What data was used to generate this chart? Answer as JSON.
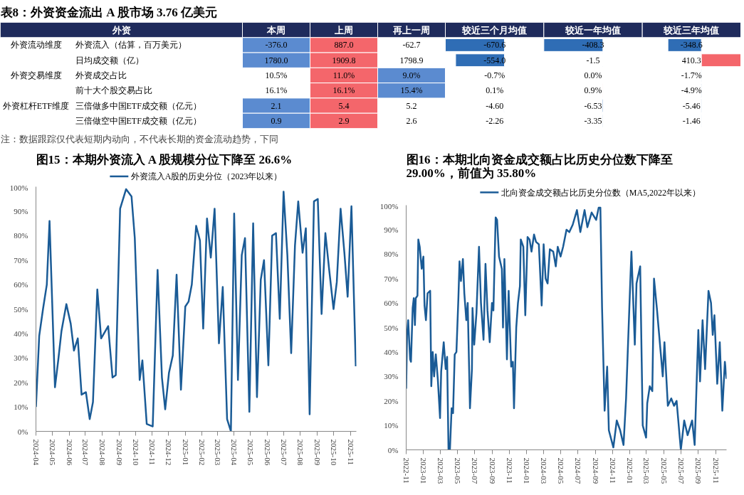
{
  "chart_data": [
    {
      "type": "heatmap",
      "title": "表8：外资资金流出 A 股市场 3.76 亿美元",
      "ylabel": "外资",
      "categories": [
        "本周",
        "上周",
        "再上一周",
        "较近三个月均值",
        "较近一年均值",
        "较近三年均值"
      ],
      "y_categories": [
        "外资流入（估算，百万美元）",
        "日均成交额（亿）",
        "外资成交占比",
        "前十大个股交易占比",
        "三倍做多中国ETF成交额（亿元）",
        "三倍做空中国ETF成交额（亿元）"
      ],
      "y2_categories": [
        "外资流动维度",
        null,
        "外资交易维度",
        null,
        "外资杠杆ETF维度",
        null
      ],
      "cells": [
        [
          -376.0,
          887.0,
          -62.7,
          -670.6,
          -408.3,
          -348.6
        ],
        [
          1780.0,
          1909.8,
          1798.9,
          -554.0,
          -1.5,
          410.3
        ],
        [
          10.5,
          11.0,
          9.0,
          -0.7,
          0.0,
          -1.7
        ],
        [
          16.1,
          16.1,
          15.4,
          0.1,
          0.9,
          -4.9
        ],
        [
          2.1,
          5.4,
          5.2,
          -4.6,
          -6.53,
          -5.46
        ],
        [
          0.9,
          2.9,
          2.6,
          -2.26,
          -3.35,
          -1.46
        ]
      ],
      "cell_labels": [
        [
          "-376.0",
          "887.0",
          "-62.7",
          "-670.6",
          "-408.3",
          "-348.6"
        ],
        [
          "1780.0",
          "1909.8",
          "1798.9",
          "-554.0",
          "-1.5",
          "410.3"
        ],
        [
          "10.5%",
          "11.0%",
          "9.0%",
          "-0.7%",
          "0.0%",
          "-1.7%"
        ],
        [
          "16.1%",
          "16.1%",
          "15.4%",
          "0.1%",
          "0.9%",
          "-4.9%"
        ],
        [
          "2.1",
          "5.4",
          "5.2",
          "-4.60",
          "-6.53",
          "-5.46"
        ],
        [
          "0.9",
          "2.9",
          "2.6",
          "-2.26",
          "-3.35",
          "-1.46"
        ]
      ],
      "annotations": [
        "注：数据跟踪仅代表短期内动向，不代表长期的资金流动趋势，下同"
      ]
    },
    {
      "type": "line",
      "title": "图15：本期外资流入 A 股规模分位下降至 26.6%",
      "legend": "top",
      "marker": "none",
      "xlim": [
        "2024-04-01",
        "2025-11-12"
      ],
      "xticks": [
        "2024-04",
        "2024-05",
        "2024-06",
        "2024-07",
        "2024-08",
        "2024-09",
        "2024-10",
        "2024-11",
        "2024-12",
        "2025-01",
        "2025-02",
        "2025-03",
        "2025-04",
        "2025-05",
        "2025-06",
        "2025-07",
        "2025-08",
        "2025-09",
        "2025-10",
        "2025-11"
      ],
      "ylim": [
        0,
        100
      ],
      "yticks": [
        {
          "value": 0,
          "label": "0%"
        },
        {
          "value": 10,
          "label": "10%"
        },
        {
          "value": 20,
          "label": "20%"
        },
        {
          "value": 30,
          "label": "30%"
        },
        {
          "value": 40,
          "label": "40%"
        },
        {
          "value": 50,
          "label": "50%"
        },
        {
          "value": 60,
          "label": "60%"
        },
        {
          "value": 70,
          "label": "70%"
        },
        {
          "value": 80,
          "label": "80%"
        },
        {
          "value": 90,
          "label": "90%"
        },
        {
          "value": 100,
          "label": "100%"
        }
      ],
      "series": [
        {
          "name": "外资流入A股的历史分位（2023年以来）",
          "color": "#1a5b96",
          "x": [
            "2024-04-01",
            "2024-04-07",
            "2024-04-14",
            "2024-04-21",
            "2024-04-26",
            "2024-05-06",
            "2024-05-12",
            "2024-05-18",
            "2024-05-27",
            "2024-06-04",
            "2024-06-10",
            "2024-06-17",
            "2024-06-24",
            "2024-07-02",
            "2024-07-09",
            "2024-07-15",
            "2024-07-23",
            "2024-07-30",
            "2024-08-12",
            "2024-08-20",
            "2024-08-26",
            "2024-09-03",
            "2024-09-14",
            "2024-09-24",
            "2024-09-30",
            "2024-10-09",
            "2024-10-14",
            "2024-10-22",
            "2024-11-02",
            "2024-11-11",
            "2024-11-19",
            "2024-11-25",
            "2024-12-02",
            "2024-12-09",
            "2024-12-16",
            "2024-12-24",
            "2025-01-01",
            "2025-01-07",
            "2025-01-13",
            "2025-01-21",
            "2025-01-28",
            "2025-02-03",
            "2025-02-10",
            "2025-02-17",
            "2025-02-24",
            "2025-03-04",
            "2025-03-11",
            "2025-03-19",
            "2025-03-26",
            "2025-04-01",
            "2025-04-08",
            "2025-04-15",
            "2025-04-21",
            "2025-04-29",
            "2025-05-06",
            "2025-05-13",
            "2025-05-20",
            "2025-05-26",
            "2025-06-03",
            "2025-06-10",
            "2025-06-17",
            "2025-06-24",
            "2025-07-01",
            "2025-07-08",
            "2025-07-15",
            "2025-07-22",
            "2025-07-28",
            "2025-08-05",
            "2025-08-11",
            "2025-08-18",
            "2025-08-26",
            "2025-09-02",
            "2025-09-09",
            "2025-09-16",
            "2025-09-23",
            "2025-10-01",
            "2025-10-07",
            "2025-10-14",
            "2025-10-21",
            "2025-10-27",
            "2025-11-03",
            "2025-11-11"
          ],
          "values": [
            10,
            39,
            50,
            60,
            86,
            18,
            29,
            41,
            52,
            44,
            33,
            38,
            15,
            16,
            5,
            12,
            58,
            38,
            43,
            22,
            23,
            91,
            99,
            96,
            79,
            21,
            29,
            3,
            2,
            66,
            22,
            9,
            24,
            31,
            64,
            17,
            51,
            53,
            60,
            84,
            78,
            42,
            87,
            71,
            91,
            36,
            59,
            5,
            0,
            89,
            21,
            72,
            79,
            8,
            85,
            14,
            62,
            70,
            27,
            80,
            81,
            46,
            98,
            72,
            32,
            76,
            94,
            73,
            83,
            7,
            94,
            95,
            48,
            81,
            66,
            50,
            61,
            91,
            73,
            55,
            92,
            26.6
          ]
        }
      ]
    },
    {
      "type": "line",
      "title": "图16：本期北向资金成交额占比历史分位数下降至29.00%，前值为 35.80%",
      "legend": "top",
      "marker": "none",
      "xlim": [
        "2022-11-01",
        "2025-12-10"
      ],
      "xticks": [
        "2022-11",
        "2023-01",
        "2023-03",
        "2023-05",
        "2023-07",
        "2023-09",
        "2023-11",
        "2024-01",
        "2024-03",
        "2024-05",
        "2024-07",
        "2024-09",
        "2024-11",
        "2025-01",
        "2025-03",
        "2025-05",
        "2025-07",
        "2025-09",
        "2025-11"
      ],
      "ylim": [
        0,
        100
      ],
      "yticks": [
        {
          "value": 0,
          "label": "0%"
        },
        {
          "value": 10,
          "label": "10%"
        },
        {
          "value": 20,
          "label": "20%"
        },
        {
          "value": 30,
          "label": "30%"
        },
        {
          "value": 40,
          "label": "40%"
        },
        {
          "value": 50,
          "label": "50%"
        },
        {
          "value": 60,
          "label": "60%"
        },
        {
          "value": 70,
          "label": "70%"
        },
        {
          "value": 80,
          "label": "80%"
        },
        {
          "value": 90,
          "label": "90%"
        },
        {
          "value": 100,
          "label": "100%"
        }
      ],
      "series": [
        {
          "name": "北向资金成交额占比历史分位数（MA5,2022年以来）",
          "color": "#1a5b96",
          "x": [
            "2022-11-01",
            "2022-11-04",
            "2022-11-08",
            "2022-11-15",
            "2022-11-18",
            "2022-11-24",
            "2022-11-28",
            "2022-12-02",
            "2022-12-05",
            "2022-12-11",
            "2022-12-14",
            "2022-12-19",
            "2022-12-26",
            "2023-01-01",
            "2023-01-05",
            "2023-01-10",
            "2023-01-16",
            "2023-01-25",
            "2023-01-29",
            "2023-02-03",
            "2023-02-08",
            "2023-02-14",
            "2023-02-21",
            "2023-03-01",
            "2023-03-05",
            "2023-03-14",
            "2023-03-21",
            "2023-03-26",
            "2023-03-31",
            "2023-04-05",
            "2023-04-11",
            "2023-04-16",
            "2023-04-22",
            "2023-04-28",
            "2023-05-05",
            "2023-05-09",
            "2023-05-14",
            "2023-05-21",
            "2023-05-26",
            "2023-06-02",
            "2023-06-07",
            "2023-06-15",
            "2023-06-22",
            "2023-06-24",
            "2023-06-30",
            "2023-07-08",
            "2023-07-17",
            "2023-07-24",
            "2023-08-02",
            "2023-08-09",
            "2023-08-16",
            "2023-08-24",
            "2023-09-01",
            "2023-09-06",
            "2023-09-14",
            "2023-09-19",
            "2023-09-26",
            "2023-10-06",
            "2023-10-10",
            "2023-10-15",
            "2023-10-24",
            "2023-10-30",
            "2023-11-08",
            "2023-11-14",
            "2023-11-18",
            "2023-11-26",
            "2023-12-02",
            "2023-12-09",
            "2023-12-12",
            "2023-12-21",
            "2023-12-28",
            "2024-01-05",
            "2024-01-12",
            "2024-01-19",
            "2024-01-28",
            "2024-02-04",
            "2024-02-14",
            "2024-02-24",
            "2024-03-02",
            "2024-03-09",
            "2024-03-16",
            "2024-03-24",
            "2024-04-05",
            "2024-04-14",
            "2024-04-21",
            "2024-05-01",
            "2024-05-10",
            "2024-05-22",
            "2024-06-01",
            "2024-06-13",
            "2024-06-28",
            "2024-07-10",
            "2024-07-25",
            "2024-08-04",
            "2024-08-19",
            "2024-09-04",
            "2024-09-13",
            "2024-09-19",
            "2024-09-25",
            "2024-10-04",
            "2024-10-13",
            "2024-10-19",
            "2024-11-04",
            "2024-11-16",
            "2024-11-28",
            "2024-12-10",
            "2024-12-19",
            "2025-01-04",
            "2025-01-07",
            "2025-01-19",
            "2025-01-25",
            "2025-02-07",
            "2025-02-16",
            "2025-02-28",
            "2025-03-04",
            "2025-03-13",
            "2025-03-22",
            "2025-03-28",
            "2025-04-07",
            "2025-04-19",
            "2025-04-28",
            "2025-05-04",
            "2025-05-16",
            "2025-05-28",
            "2025-06-07",
            "2025-06-16",
            "2025-07-01",
            "2025-07-13",
            "2025-07-25",
            "2025-08-10",
            "2025-08-19",
            "2025-09-01",
            "2025-09-07",
            "2025-09-16",
            "2025-09-25",
            "2025-10-07",
            "2025-10-16",
            "2025-10-22",
            "2025-10-28",
            "2025-11-07",
            "2025-11-16",
            "2025-11-25",
            "2025-12-04",
            "2025-12-10"
          ],
          "values": [
            25,
            47,
            53,
            37,
            36,
            58,
            62,
            51,
            62,
            63,
            86,
            83,
            74,
            79,
            59,
            53,
            64,
            65,
            26,
            40,
            30,
            39,
            29,
            13,
            32,
            44,
            33,
            38,
            0,
            0,
            17,
            15,
            39,
            40,
            62,
            77,
            69,
            78,
            64,
            53,
            60,
            17,
            33,
            58,
            43,
            56,
            83,
            60,
            45,
            76,
            57,
            44,
            60,
            57,
            95,
            94,
            79,
            74,
            50,
            78,
            37,
            65,
            34,
            36,
            17,
            50,
            60,
            67,
            86,
            83,
            55,
            87,
            86,
            81,
            88,
            85,
            84,
            59,
            84,
            70,
            68,
            82,
            81,
            75,
            83,
            79,
            83,
            90,
            89,
            92,
            98,
            89,
            98,
            91,
            97,
            94,
            99,
            99,
            58,
            16,
            34,
            8,
            1,
            12,
            8,
            2,
            21,
            72,
            81,
            43,
            68,
            75,
            10,
            5,
            19,
            26,
            24,
            70,
            58,
            42,
            30,
            44,
            18,
            21,
            18,
            20,
            0,
            12,
            6,
            12,
            2,
            49,
            28,
            53,
            33,
            65,
            60,
            47,
            55,
            27,
            44,
            16,
            36,
            29
          ]
        }
      ]
    }
  ]
}
